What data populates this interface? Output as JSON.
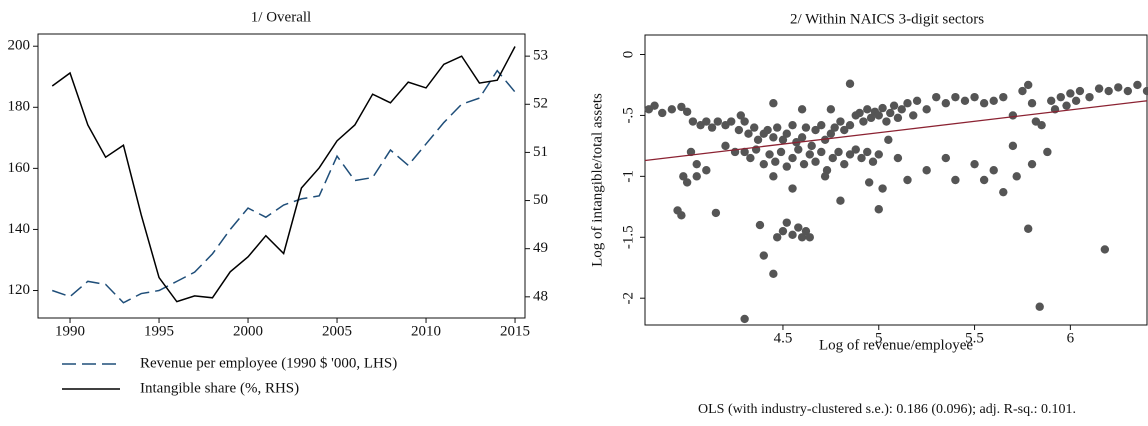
{
  "chart_data": [
    {
      "type": "line",
      "title": "1/ Overall",
      "x": [
        1989,
        1990,
        1991,
        1992,
        1993,
        1994,
        1995,
        1996,
        1997,
        1998,
        1999,
        2000,
        2001,
        2002,
        2003,
        2004,
        2005,
        2006,
        2007,
        2008,
        2009,
        2010,
        2011,
        2012,
        2013,
        2014,
        2015
      ],
      "series": [
        {
          "name": "Revenue per employee (1990 $ '000, LHS)",
          "color": "#1f4e79",
          "linestyle": "dashed",
          "values": [
            120,
            118,
            123,
            122,
            116,
            119,
            120,
            123,
            126,
            132,
            140,
            147,
            144,
            148,
            150,
            151,
            164,
            156,
            157,
            166,
            161,
            168,
            175,
            181,
            183,
            192,
            185
          ]
        },
        {
          "name": "Intangible share (%, RHS)",
          "color": "#000000",
          "linestyle": "solid",
          "axis": "y2",
          "values": [
            52.38,
            52.65,
            51.57,
            50.9,
            51.15,
            49.7,
            48.4,
            47.9,
            48.02,
            47.98,
            48.52,
            48.83,
            49.27,
            48.9,
            50.26,
            50.68,
            51.24,
            51.57,
            52.21,
            52.03,
            52.46,
            52.34,
            52.83,
            53.0,
            52.44,
            52.5,
            53.2
          ]
        }
      ],
      "xlim": [
        1988.2,
        2015.56
      ],
      "xticks": [
        1990,
        1995,
        2000,
        2005,
        2010,
        2015
      ],
      "ylim": [
        111,
        204
      ],
      "yticks": [
        120,
        140,
        160,
        180,
        200
      ],
      "y2lim": [
        47.56,
        53.46
      ],
      "y2ticks": [
        48,
        49,
        50,
        51,
        52,
        53
      ]
    },
    {
      "type": "scatter",
      "title": "2/ Within NAICS 3-digit sectors",
      "x_label": "Log of revenue/employee",
      "y_label": "Log of intangible/total assets",
      "note": "OLS (with industry-clustered s.e.): 0.186 (0.096); adj. R-sq.: 0.101.",
      "color": "#555555",
      "x": [
        3.8,
        3.83,
        3.87,
        3.92,
        3.97,
        4.0,
        4.03,
        4.07,
        4.1,
        4.13,
        4.16,
        4.2,
        4.23,
        4.27,
        4.02,
        4.05,
        3.98,
        4.0,
        3.95,
        3.97,
        4.05,
        4.1,
        4.15,
        4.2,
        4.25,
        4.28,
        4.3,
        4.32,
        4.35,
        4.37,
        4.4,
        4.42,
        4.45,
        4.47,
        4.5,
        4.52,
        4.55,
        4.57,
        4.6,
        4.62,
        4.65,
        4.67,
        4.7,
        4.72,
        4.75,
        4.77,
        4.8,
        4.82,
        4.85,
        4.3,
        4.33,
        4.36,
        4.4,
        4.43,
        4.46,
        4.49,
        4.52,
        4.55,
        4.58,
        4.61,
        4.64,
        4.67,
        4.7,
        4.73,
        4.76,
        4.79,
        4.82,
        4.85,
        4.88,
        4.91,
        4.94,
        4.97,
        5.0,
        4.38,
        4.4,
        4.45,
        4.47,
        4.5,
        4.52,
        4.55,
        4.58,
        4.6,
        4.62,
        4.64,
        4.3,
        4.45,
        4.55,
        4.72,
        4.8,
        4.95,
        5.0,
        5.02,
        4.45,
        4.6,
        4.85,
        4.75,
        4.88,
        4.9,
        4.92,
        4.94,
        4.96,
        4.98,
        5.0,
        5.02,
        5.04,
        5.06,
        5.08,
        5.1,
        5.12,
        5.15,
        5.18,
        5.2,
        5.25,
        5.3,
        5.35,
        5.4,
        5.45,
        5.5,
        5.55,
        5.6,
        5.05,
        5.1,
        5.15,
        5.25,
        5.35,
        5.4,
        5.5,
        5.55,
        5.6,
        5.65,
        5.7,
        5.72,
        5.78,
        5.84,
        5.8,
        5.65,
        5.7,
        5.75,
        5.78,
        5.8,
        5.82,
        5.85,
        5.9,
        5.92,
        5.95,
        5.98,
        6.0,
        6.03,
        6.05,
        6.1,
        6.15,
        6.2,
        6.25,
        6.3,
        6.35,
        6.4,
        6.18,
        5.88
      ],
      "y": [
        -0.45,
        -0.42,
        -0.48,
        -0.45,
        -0.43,
        -0.47,
        -0.55,
        -0.58,
        -0.55,
        -0.6,
        -0.55,
        -0.58,
        -0.55,
        -0.62,
        -0.8,
        -0.9,
        -1.0,
        -1.05,
        -1.28,
        -1.32,
        -1.0,
        -0.95,
        -1.3,
        -0.75,
        -0.8,
        -0.5,
        -0.55,
        -0.65,
        -0.6,
        -0.7,
        -0.65,
        -0.62,
        -0.68,
        -0.6,
        -0.7,
        -0.65,
        -0.58,
        -0.72,
        -0.68,
        -0.6,
        -0.75,
        -0.62,
        -0.58,
        -0.7,
        -0.65,
        -0.6,
        -0.55,
        -0.62,
        -0.58,
        -0.8,
        -0.85,
        -0.78,
        -0.9,
        -0.82,
        -0.88,
        -0.8,
        -0.92,
        -0.85,
        -0.78,
        -0.9,
        -0.82,
        -0.88,
        -0.8,
        -0.95,
        -0.85,
        -0.8,
        -0.9,
        -0.82,
        -0.78,
        -0.85,
        -0.8,
        -0.88,
        -0.82,
        -1.4,
        -1.65,
        -1.8,
        -1.5,
        -1.45,
        -1.38,
        -1.48,
        -1.42,
        -1.5,
        -1.45,
        -1.5,
        -2.17,
        -1.0,
        -1.1,
        -1.0,
        -1.2,
        -1.05,
        -1.27,
        -1.1,
        -0.4,
        -0.45,
        -0.24,
        -0.45,
        -0.5,
        -0.48,
        -0.55,
        -0.45,
        -0.52,
        -0.47,
        -0.5,
        -0.44,
        -0.55,
        -0.48,
        -0.42,
        -0.52,
        -0.45,
        -0.4,
        -0.5,
        -0.38,
        -0.45,
        -0.35,
        -0.4,
        -0.35,
        -0.38,
        -0.35,
        -0.4,
        -0.38,
        -0.7,
        -0.85,
        -1.03,
        -0.95,
        -0.85,
        -1.03,
        -0.9,
        -1.03,
        -0.95,
        -1.13,
        -0.75,
        -1.0,
        -1.43,
        -2.07,
        -0.9,
        -0.35,
        -0.5,
        -0.3,
        -0.25,
        -0.4,
        -0.55,
        -0.58,
        -0.38,
        -0.45,
        -0.35,
        -0.42,
        -0.32,
        -0.38,
        -0.3,
        -0.35,
        -0.28,
        -0.3,
        -0.27,
        -0.3,
        -0.25,
        -0.3,
        -1.6,
        -0.8
      ],
      "fit": {
        "color": "#8b2232",
        "x": [
          3.78,
          6.4
        ],
        "y": [
          -0.87,
          -0.38
        ]
      },
      "xlim": [
        3.78,
        6.4
      ],
      "xticks": [
        4.5,
        5,
        5.5,
        6
      ],
      "ylim": [
        -2.22,
        0.16
      ],
      "yticks": [
        0,
        {
          "value": -0.5,
          "label": "-.5"
        },
        -1,
        -1.5,
        -2
      ]
    }
  ]
}
